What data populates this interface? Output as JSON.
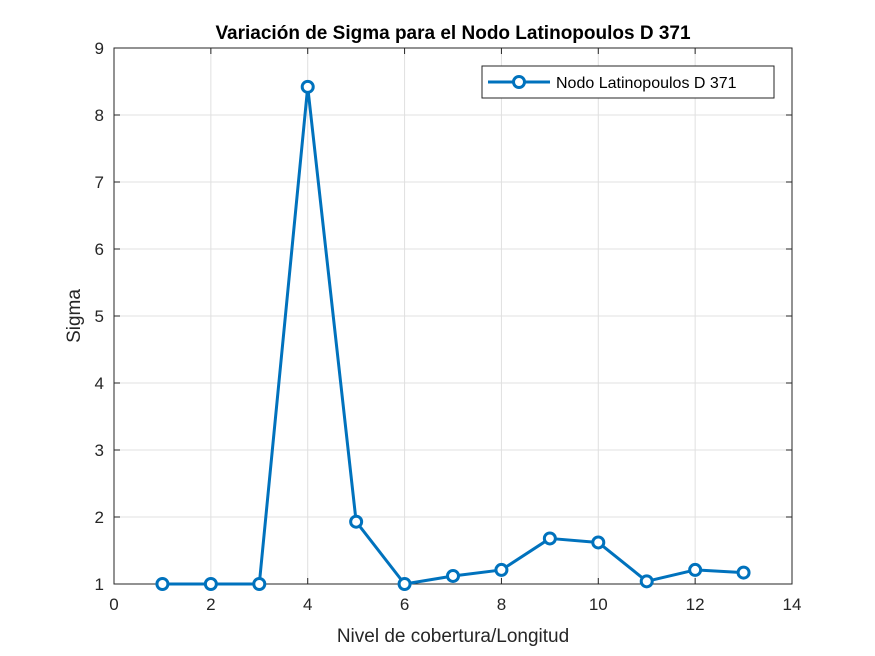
{
  "chart_data": {
    "type": "line",
    "title": "Variación de Sigma para el Nodo Latinopoulos D 371",
    "xlabel": "Nivel de cobertura/Longitud",
    "ylabel": "Sigma",
    "xlim": [
      0,
      14
    ],
    "ylim": [
      1,
      9
    ],
    "xticks": [
      0,
      2,
      4,
      6,
      8,
      10,
      12,
      14
    ],
    "yticks": [
      1,
      2,
      3,
      4,
      5,
      6,
      7,
      8,
      9
    ],
    "grid": true,
    "legend_position": "top-right",
    "series": [
      {
        "name": "Nodo Latinopoulos D 371",
        "color": "#0072bd",
        "marker": "circle",
        "x": [
          1,
          2,
          3,
          4,
          5,
          6,
          7,
          8,
          9,
          10,
          11,
          12,
          13
        ],
        "y": [
          1.0,
          1.0,
          1.0,
          8.42,
          1.93,
          1.0,
          1.12,
          1.21,
          1.68,
          1.62,
          1.04,
          1.21,
          1.17
        ]
      }
    ]
  }
}
